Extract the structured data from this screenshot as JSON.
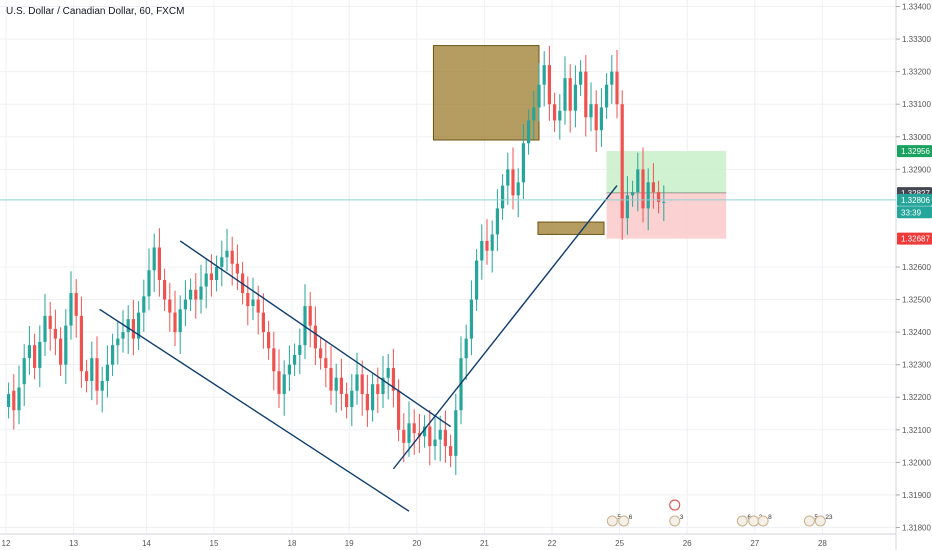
{
  "title": "U.S. Dollar / Canadian Dollar, 60, FXCM",
  "colors": {
    "up": "#26a69a",
    "down": "#ef5350",
    "trendline": "#0c3c6e",
    "box_fill": "#9c7c2c",
    "box_stroke": "#6b5315",
    "target_zone": "#c9f0c9",
    "stop_zone": "#fbc9c9",
    "price_line": "#8fd0d0",
    "badge_green": "#1aa260",
    "badge_dark": "#434651",
    "badge_teal": "#26a69a",
    "badge_red": "#ef3a3a"
  },
  "chart_data": {
    "type": "candlestick",
    "title": "U.S. Dollar / Canadian Dollar, 60, FXCM",
    "x_ticks": [
      "12",
      "13",
      "14",
      "15",
      "18",
      "19",
      "20",
      "21",
      "22",
      "25",
      "26",
      "27",
      "28"
    ],
    "x_tick_index": [
      0,
      13,
      27,
      40,
      55,
      66,
      79,
      92,
      105,
      118,
      131,
      144,
      157
    ],
    "y_ticks": [
      "1.33400",
      "1.33300",
      "1.33200",
      "1.33100",
      "1.33000",
      "1.32900",
      "1.32600",
      "1.32500",
      "1.32400",
      "1.32300",
      "1.32200",
      "1.32100",
      "1.32000",
      "1.31900",
      "1.31800"
    ],
    "ylim": [
      1.3178,
      1.3342
    ],
    "price_labels": [
      {
        "text": "1.32956",
        "value": 1.32956,
        "color": "badge_green"
      },
      {
        "text": "1.32827",
        "value": 1.32827,
        "color": "badge_dark"
      },
      {
        "text": "1.32806",
        "value": 1.32806,
        "color": "badge_teal"
      },
      {
        "text": "33:39",
        "value": 1.32768,
        "color": "badge_teal"
      },
      {
        "text": "1.32687",
        "value": 1.32687,
        "color": "badge_red"
      }
    ],
    "current_price": 1.32806,
    "candles_close": [
      1.3221,
      1.3216,
      1.3223,
      1.3232,
      1.3236,
      1.3229,
      1.3237,
      1.3245,
      1.3241,
      1.3238,
      1.323,
      1.3242,
      1.3252,
      1.3245,
      1.3228,
      1.3225,
      1.3232,
      1.3222,
      1.3225,
      1.323,
      1.3236,
      1.3238,
      1.324,
      1.3244,
      1.3238,
      1.3246,
      1.3251,
      1.3259,
      1.3266,
      1.3256,
      1.325,
      1.3246,
      1.324,
      1.3247,
      1.325,
      1.3253,
      1.325,
      1.3254,
      1.3258,
      1.3256,
      1.326,
      1.3263,
      1.3265,
      1.3261,
      1.3258,
      1.3252,
      1.3248,
      1.325,
      1.3246,
      1.324,
      1.3235,
      1.3228,
      1.3221,
      1.3227,
      1.323,
      1.3233,
      1.3236,
      1.3248,
      1.3242,
      1.3235,
      1.3232,
      1.3229,
      1.3222,
      1.3226,
      1.3221,
      1.3217,
      1.3222,
      1.3227,
      1.3221,
      1.3216,
      1.3224,
      1.3221,
      1.3226,
      1.3229,
      1.3222,
      1.321,
      1.3206,
      1.3212,
      1.3209,
      1.3208,
      1.3211,
      1.3205,
      1.3207,
      1.321,
      1.3205,
      1.3202,
      1.3216,
      1.3232,
      1.3238,
      1.325,
      1.3262,
      1.3268,
      1.3265,
      1.327,
      1.3278,
      1.3285,
      1.329,
      1.3282,
      1.3286,
      1.3298,
      1.3305,
      1.3309,
      1.3316,
      1.3322,
      1.331,
      1.3305,
      1.3308,
      1.3318,
      1.3308,
      1.3316,
      1.332,
      1.3306,
      1.331,
      1.3302,
      1.3309,
      1.3316,
      1.332,
      1.331,
      1.3275,
      1.3282,
      1.3283,
      1.329,
      1.3278,
      1.3286,
      1.3283,
      1.328,
      1.328
    ],
    "candles_open": [
      1.3217,
      1.3222,
      1.3216,
      1.3224,
      1.3232,
      1.3236,
      1.3229,
      1.3237,
      1.3245,
      1.3241,
      1.3238,
      1.323,
      1.3242,
      1.3252,
      1.3245,
      1.3228,
      1.3225,
      1.3232,
      1.3222,
      1.3225,
      1.323,
      1.3236,
      1.3238,
      1.324,
      1.3244,
      1.3238,
      1.3246,
      1.3251,
      1.3259,
      1.3266,
      1.3256,
      1.325,
      1.3246,
      1.324,
      1.3247,
      1.325,
      1.3253,
      1.325,
      1.3254,
      1.3258,
      1.3256,
      1.326,
      1.3263,
      1.3265,
      1.3261,
      1.3258,
      1.3252,
      1.3248,
      1.325,
      1.3246,
      1.324,
      1.3235,
      1.3228,
      1.3221,
      1.3227,
      1.323,
      1.3233,
      1.3236,
      1.3248,
      1.3242,
      1.3235,
      1.3232,
      1.3229,
      1.3222,
      1.3226,
      1.3221,
      1.3217,
      1.3222,
      1.3227,
      1.3221,
      1.3216,
      1.3224,
      1.3221,
      1.3226,
      1.3229,
      1.3222,
      1.321,
      1.3206,
      1.3212,
      1.3209,
      1.3208,
      1.3211,
      1.3205,
      1.3207,
      1.321,
      1.3205,
      1.3202,
      1.3216,
      1.3232,
      1.3238,
      1.325,
      1.3262,
      1.3268,
      1.3265,
      1.327,
      1.3278,
      1.3285,
      1.329,
      1.3282,
      1.3286,
      1.3298,
      1.3305,
      1.3309,
      1.3316,
      1.3322,
      1.331,
      1.3305,
      1.3308,
      1.3318,
      1.3308,
      1.3316,
      1.332,
      1.3306,
      1.331,
      1.3302,
      1.3309,
      1.3316,
      1.332,
      1.331,
      1.3275,
      1.3282,
      1.3283,
      1.329,
      1.3278,
      1.3286,
      1.3283,
      1.328
    ],
    "rect_zones": [
      {
        "type": "box",
        "x0": 82.2,
        "x1": 102.5,
        "y0": 1.3299,
        "y1": 1.3328
      },
      {
        "type": "box",
        "x0": 102.3,
        "x1": 115.0,
        "y0": 1.327,
        "y1": 1.32738
      },
      {
        "type": "target",
        "x0": 115.5,
        "x1": 138.5,
        "y0": 1.32827,
        "y1": 1.32956
      },
      {
        "type": "stop",
        "x0": 115.5,
        "x1": 138.5,
        "y0": 1.32687,
        "y1": 1.32827
      }
    ],
    "trendlines": [
      {
        "x0": 33.5,
        "y0": 1.3268,
        "x1": 85.5,
        "y1": 1.3211
      },
      {
        "x0": 18.0,
        "y0": 1.3247,
        "x1": 77.5,
        "y1": 1.3185
      },
      {
        "x0": 74.5,
        "y0": 1.3198,
        "x1": 117.5,
        "y1": 1.3285
      }
    ],
    "events": [
      {
        "x": 116.6,
        "label": "5"
      },
      {
        "x": 118.8,
        "label": "6"
      },
      {
        "x": 128.6,
        "label": "3"
      },
      {
        "x": 141.6,
        "label": "6"
      },
      {
        "x": 143.8,
        "label": "2"
      },
      {
        "x": 145.6,
        "label": "8"
      },
      {
        "x": 154.5,
        "label": "5"
      },
      {
        "x": 156.6,
        "label": "23"
      }
    ]
  }
}
